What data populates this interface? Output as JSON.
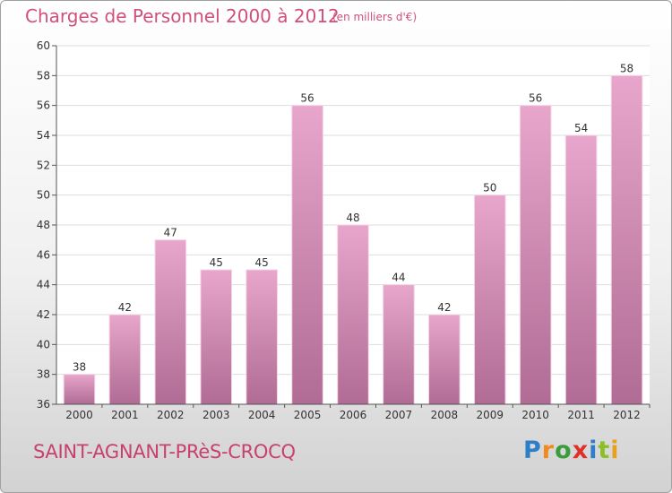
{
  "header": {
    "title": "Charges de Personnel 2000 à 2012",
    "subtitle": "(en milliers d'€)"
  },
  "footer": {
    "town": "SAINT-AGNANT-PRèS-CROCQ",
    "logo_letters": [
      "P",
      "r",
      "o",
      "x",
      "i",
      "t",
      "i"
    ]
  },
  "colors": {
    "title": "#d0507a",
    "bar_top": "#e8a6cc",
    "bar_bottom": "#b06c94",
    "grid": "#dddddd"
  },
  "chart_data": {
    "type": "bar",
    "title": "Charges de Personnel 2000 à 2012",
    "subtitle": "(en milliers d'€)",
    "categories": [
      "2000",
      "2001",
      "2002",
      "2003",
      "2004",
      "2005",
      "2006",
      "2007",
      "2008",
      "2009",
      "2010",
      "2011",
      "2012"
    ],
    "values": [
      38,
      42,
      47,
      45,
      45,
      56,
      48,
      44,
      42,
      50,
      56,
      54,
      58
    ],
    "ylim": [
      36,
      60
    ],
    "yticks": [
      36,
      38,
      40,
      42,
      44,
      46,
      48,
      50,
      52,
      54,
      56,
      58,
      60
    ],
    "grid": true,
    "xlabel": "",
    "ylabel": ""
  }
}
